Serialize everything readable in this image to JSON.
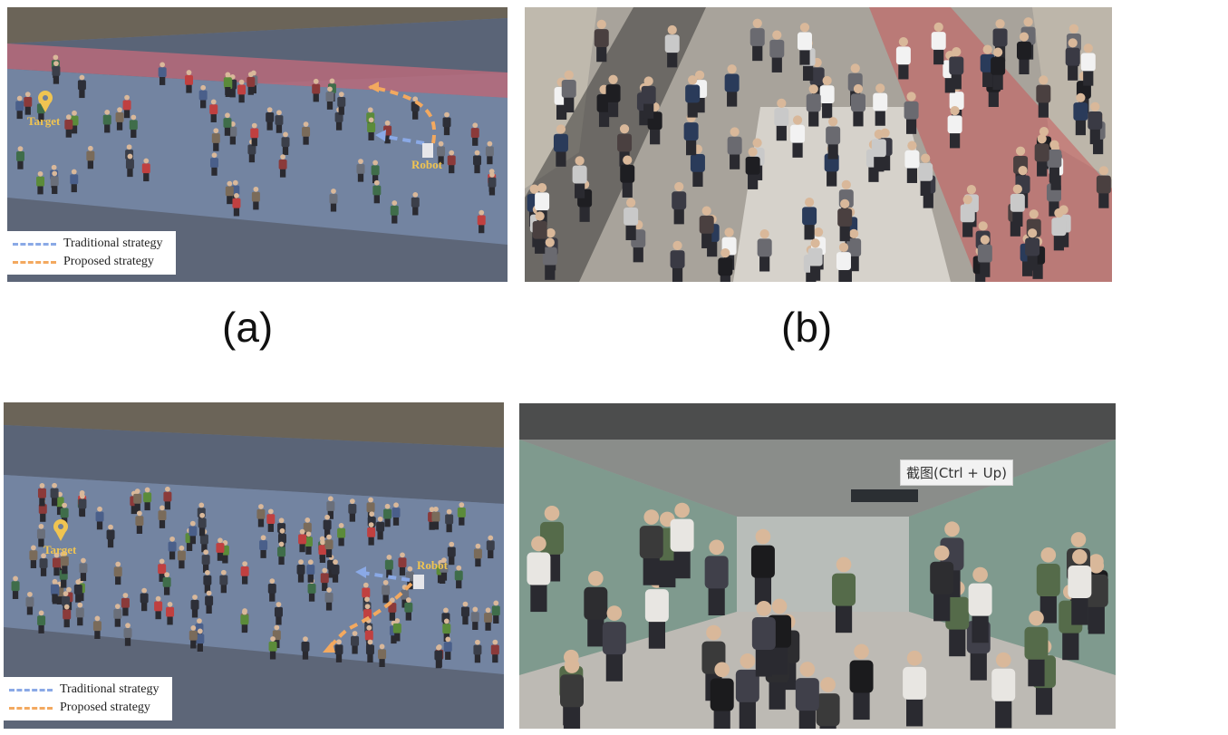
{
  "panel_a": {
    "caption": "(a)",
    "target_label": "Target",
    "robot_label": "Robot",
    "legend": [
      {
        "label": "Traditional strategy",
        "color": "#8aa9e6"
      },
      {
        "label": "Proposed strategy",
        "color": "#f3a95f"
      }
    ]
  },
  "panel_b": {
    "caption": "(b)"
  },
  "panel_c": {
    "target_label": "Target",
    "robot_label": "Robot",
    "legend": [
      {
        "label": "Traditional strategy",
        "color": "#8aa9e6"
      },
      {
        "label": "Proposed strategy",
        "color": "#f3a95f"
      }
    ]
  },
  "panel_d": {
    "tooltip": "截图(Ctrl + Up)"
  },
  "colors": {
    "floor": "#6f7e99",
    "wall": "#5a6477",
    "red_zone": "#b96a7a",
    "target": "#f0c451",
    "traditional": "#8aa9e6",
    "proposed": "#f3a95f"
  }
}
